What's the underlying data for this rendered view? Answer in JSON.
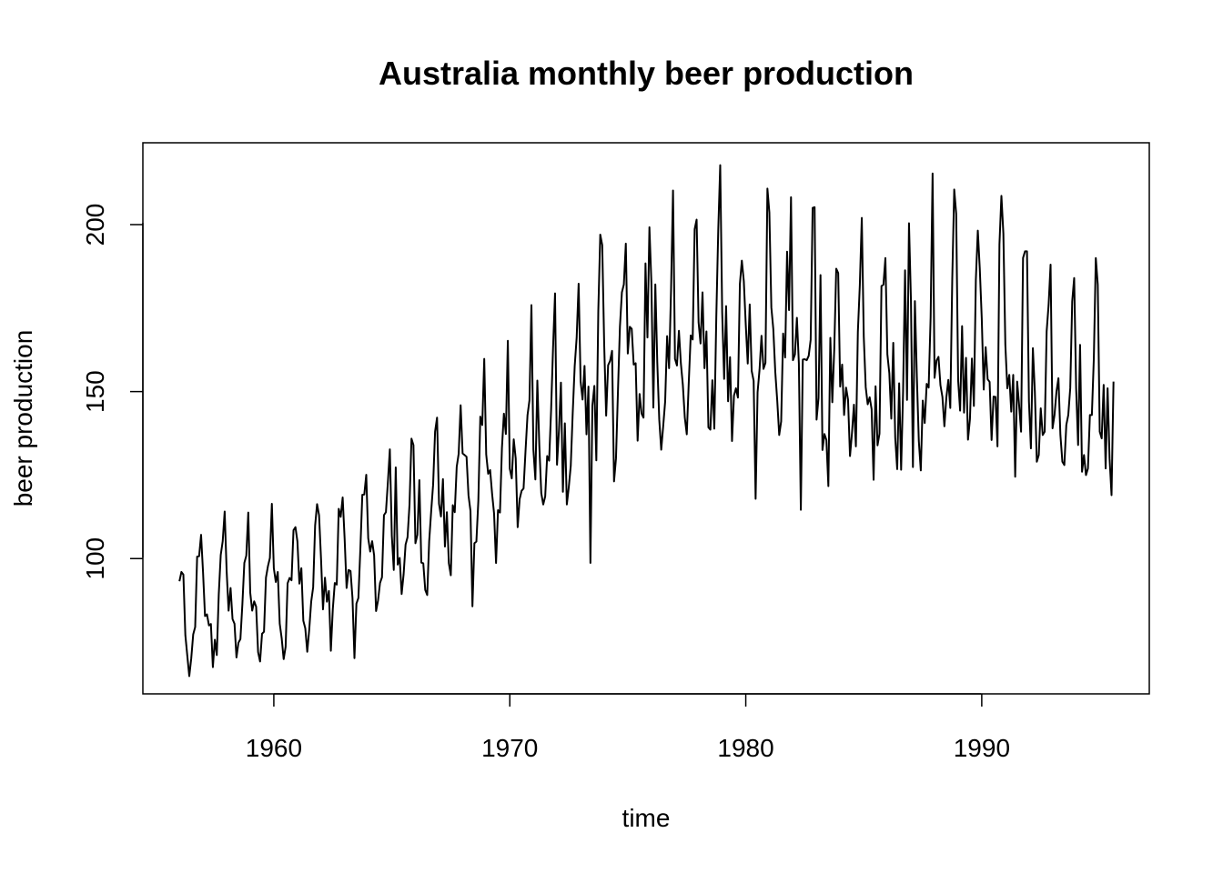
{
  "chart_data": {
    "type": "line",
    "title": "Australia monthly beer production",
    "xlabel": "time",
    "ylabel": "beer production",
    "x_ticks": [
      1960,
      1970,
      1980,
      1990
    ],
    "y_ticks": [
      100,
      150,
      200
    ],
    "xlim": [
      1954.45,
      1997.1
    ],
    "ylim": [
      59.5,
      224.5
    ],
    "grid": false,
    "line_color": "#000000",
    "series": [
      {
        "start_year": 1956,
        "frequency": 12,
        "values": [
          93.2,
          96.0,
          95.2,
          77.1,
          70.9,
          64.8,
          70.1,
          77.3,
          79.5,
          100.6,
          100.7,
          107.1,
          95.9,
          82.8,
          83.3,
          80.0,
          80.4,
          67.5,
          75.7,
          71.1,
          89.3,
          101.1,
          105.2,
          114.1,
          96.3,
          84.4,
          91.2,
          81.9,
          80.5,
          70.4,
          74.8,
          75.9,
          86.3,
          98.7,
          100.9,
          113.8,
          89.8,
          84.4,
          87.2,
          85.6,
          72.0,
          69.2,
          77.5,
          78.1,
          94.3,
          97.7,
          100.2,
          116.4,
          97.1,
          93.0,
          96.0,
          80.5,
          76.1,
          69.9,
          73.6,
          92.6,
          94.2,
          93.5,
          108.5,
          109.4,
          105.1,
          92.5,
          97.1,
          81.4,
          79.1,
          72.1,
          78.7,
          87.1,
          91.4,
          109.9,
          116.3,
          113.0,
          100.0,
          84.8,
          94.3,
          87.1,
          90.3,
          72.4,
          84.9,
          92.7,
          92.2,
          114.9,
          112.5,
          118.3,
          106.0,
          91.2,
          96.6,
          96.3,
          88.2,
          70.2,
          86.5,
          88.2,
          102.8,
          119.1,
          119.2,
          125.1,
          106.1,
          102.1,
          105.2,
          101.0,
          84.3,
          87.5,
          92.7,
          94.4,
          113.0,
          113.9,
          122.9,
          132.7,
          106.9,
          96.6,
          127.3,
          98.2,
          100.2,
          89.4,
          95.3,
          104.2,
          106.4,
          116.2,
          135.9,
          134.0,
          104.6,
          107.1,
          123.5,
          98.8,
          98.6,
          90.6,
          89.1,
          105.2,
          114.0,
          122.1,
          138.0,
          142.2,
          116.4,
          112.6,
          123.8,
          103.6,
          113.9,
          98.6,
          95.0,
          116.0,
          113.9,
          127.5,
          131.4,
          145.9,
          131.5,
          131.0,
          130.5,
          118.9,
          114.3,
          85.7,
          104.6,
          105.1,
          117.3,
          142.5,
          140.0,
          159.8,
          131.2,
          125.4,
          126.5,
          119.4,
          113.5,
          98.7,
          114.5,
          113.8,
          133.1,
          143.4,
          137.3,
          165.2,
          126.9,
          124.0,
          135.7,
          130.0,
          109.4,
          117.8,
          120.3,
          121.0,
          132.3,
          142.9,
          147.4,
          175.9,
          132.6,
          123.7,
          153.3,
          134.0,
          119.6,
          116.2,
          118.6,
          130.7,
          129.3,
          144.4,
          163.2,
          179.4,
          128.1,
          138.4,
          152.7,
          120.0,
          140.5,
          116.2,
          121.4,
          127.8,
          143.6,
          157.6,
          166.2,
          182.3,
          153.1,
          147.6,
          157.7,
          137.2,
          151.5,
          98.7,
          145.8,
          151.7,
          129.4,
          174.1,
          197.0,
          193.9,
          164.1,
          142.8,
          157.9,
          159.2,
          162.2,
          123.1,
          130.0,
          150.1,
          169.4,
          179.7,
          182.1,
          194.3,
          161.4,
          169.4,
          168.8,
          158.1,
          158.5,
          135.3,
          149.3,
          143.4,
          142.2,
          188.4,
          166.2,
          199.2,
          182.7,
          145.2,
          182.1,
          158.7,
          141.6,
          132.6,
          139.6,
          147.0,
          166.6,
          157.0,
          180.4,
          210.2,
          159.8,
          157.8,
          168.2,
          158.4,
          152.0,
          142.2,
          137.2,
          152.6,
          166.8,
          165.6,
          198.6,
          201.5,
          170.7,
          164.4,
          179.7,
          157.0,
          168.0,
          139.3,
          138.6,
          153.4,
          138.9,
          172.1,
          198.4,
          217.8,
          173.7,
          153.8,
          175.6,
          147.1,
          160.3,
          135.2,
          148.8,
          151.0,
          148.2,
          182.2,
          189.2,
          183.1,
          170.0,
          158.4,
          176.1,
          156.2,
          153.2,
          117.9,
          149.8,
          156.6,
          166.7,
          156.8,
          158.6,
          210.8,
          203.6,
          175.2,
          168.7,
          155.9,
          147.3,
          137.0,
          141.1,
          167.4,
          160.2,
          191.9,
          174.4,
          208.2,
          159.4,
          161.1,
          172.1,
          158.4,
          114.6,
          159.6,
          159.7,
          159.4,
          160.7,
          165.5,
          205.0,
          205.2,
          141.6,
          148.1,
          184.9,
          132.5,
          137.3,
          135.5,
          121.7,
          166.1,
          146.8,
          162.8,
          186.8,
          185.5,
          151.5,
          158.1,
          143.0,
          151.2,
          147.6,
          130.7,
          137.5,
          146.1,
          133.6,
          167.9,
          181.9,
          202.0,
          166.5,
          151.3,
          146.2,
          148.3,
          144.7,
          123.6,
          151.6,
          133.9,
          137.4,
          181.6,
          182.0,
          190.0,
          161.2,
          155.5,
          141.9,
          164.6,
          136.2,
          126.8,
          152.5,
          126.6,
          150.1,
          186.3,
          147.5,
          200.4,
          177.2,
          127.4,
          177.1,
          154.4,
          135.2,
          126.4,
          147.3,
          140.6,
          152.3,
          151.2,
          172.2,
          215.3,
          154.1,
          159.3,
          160.4,
          151.9,
          148.4,
          139.6,
          148.2,
          153.5,
          145.1,
          183.7,
          210.5,
          203.3,
          153.3,
          144.3,
          169.6,
          143.7,
          160.1,
          135.6,
          141.8,
          159.9,
          145.7,
          183.5,
          198.2,
          186.8,
          172.0,
          150.6,
          163.3,
          153.7,
          152.9,
          135.5,
          148.5,
          148.4,
          133.6,
          194.1,
          208.6,
          197.3,
          164.0,
          151.0,
          155.0,
          144.0,
          155.0,
          124.5,
          153.0,
          146.0,
          138.0,
          190.0,
          192.0,
          192.0,
          147.0,
          133.0,
          163.0,
          150.0,
          129.0,
          131.0,
          145.0,
          137.0,
          138.0,
          168.0,
          176.0,
          188.0,
          139.0,
          143.0,
          150.0,
          154.0,
          137.0,
          129.0,
          128.0,
          140.0,
          143.0,
          151.0,
          177.0,
          184.0,
          151.0,
          134.0,
          164.0,
          126.0,
          131.0,
          125.0,
          127.0,
          143.0,
          143.0,
          160.0,
          190.0,
          182.0,
          138.0,
          136.0,
          152.0,
          127.0,
          151.0,
          130.0,
          119.0,
          153.0
        ]
      }
    ]
  }
}
